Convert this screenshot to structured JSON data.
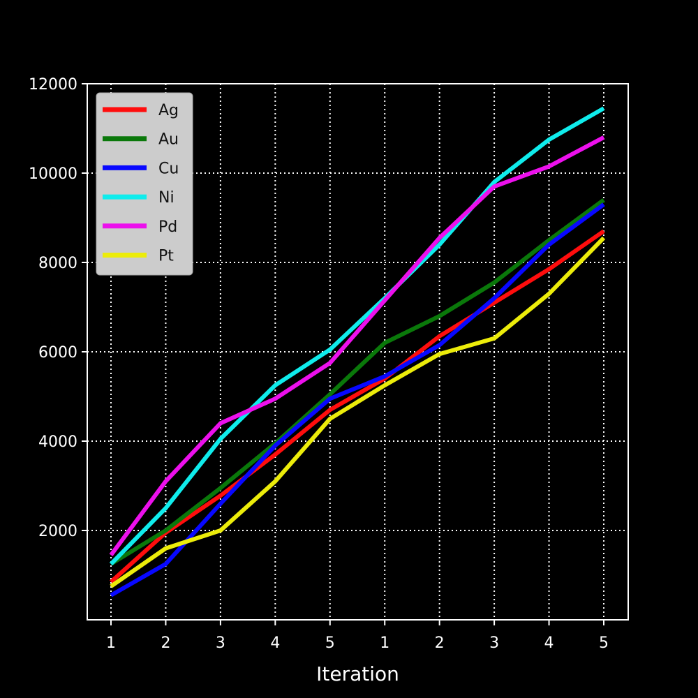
{
  "chart_data": {
    "type": "line",
    "title": "",
    "xlabel": "Iteration",
    "ylabel": "",
    "categories": [
      "1",
      "2",
      "3",
      "4",
      "5",
      "1",
      "2",
      "3",
      "4",
      "5"
    ],
    "ylim": [
      0,
      12000
    ],
    "yticks": [
      2000,
      4000,
      6000,
      8000,
      10000,
      12000
    ],
    "grid": true,
    "legend_position": "top-left",
    "colors": {
      "background": "#000000",
      "axes": "#ffffff",
      "grid": "#ffffff",
      "legend_bg": "#cccccc"
    },
    "series": [
      {
        "name": "Ag",
        "color": "#ff0d0d",
        "values": [
          850,
          1950,
          2780,
          3700,
          4700,
          5400,
          6350,
          7100,
          7850,
          8700
        ]
      },
      {
        "name": "Au",
        "color": "#0a780a",
        "values": [
          1250,
          2000,
          2950,
          3950,
          5050,
          6200,
          6800,
          7550,
          8500,
          9400
        ]
      },
      {
        "name": "Cu",
        "color": "#0808ff",
        "values": [
          550,
          1250,
          2600,
          3900,
          4950,
          5450,
          6150,
          7200,
          8400,
          9300
        ]
      },
      {
        "name": "Ni",
        "color": "#0fecec",
        "values": [
          1250,
          2500,
          4050,
          5250,
          6050,
          7200,
          8400,
          9800,
          10750,
          11450
        ]
      },
      {
        "name": "Pd",
        "color": "#ec10ec",
        "values": [
          1450,
          3100,
          4400,
          4950,
          5750,
          7150,
          8550,
          9700,
          10150,
          10800
        ]
      },
      {
        "name": "Pt",
        "color": "#ecec0a",
        "values": [
          750,
          1600,
          2000,
          3100,
          4500,
          5250,
          5950,
          6300,
          7300,
          8550
        ]
      }
    ]
  }
}
